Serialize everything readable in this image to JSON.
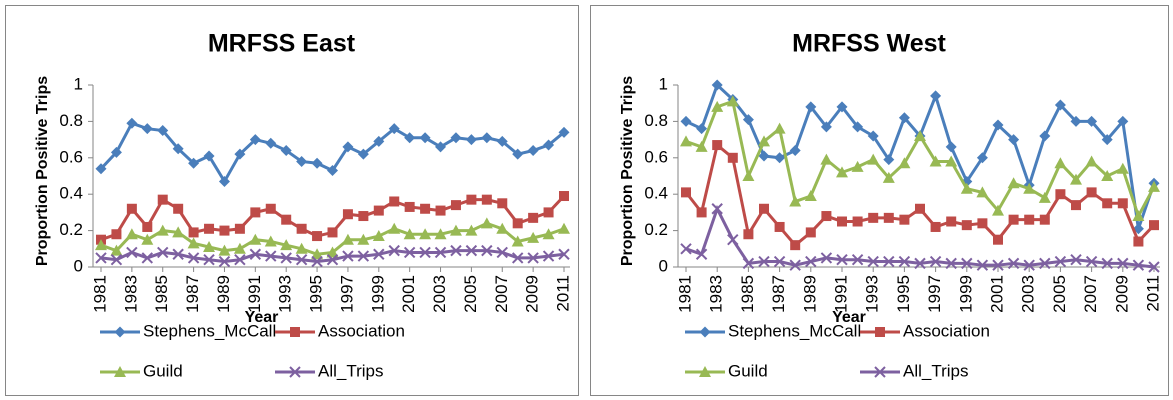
{
  "chart_data": [
    {
      "type": "line",
      "title": "MRFSS East",
      "x_label": "Year",
      "y_label": "Proportion Positive Trips",
      "x": [
        1981,
        1982,
        1983,
        1984,
        1985,
        1986,
        1987,
        1988,
        1989,
        1990,
        1991,
        1992,
        1993,
        1994,
        1995,
        1996,
        1997,
        1998,
        1999,
        2000,
        2001,
        2002,
        2003,
        2004,
        2005,
        2006,
        2007,
        2008,
        2009,
        2010,
        2011
      ],
      "xlim": [
        1981,
        2011
      ],
      "xticks": [
        1981,
        1983,
        1985,
        1987,
        1989,
        1991,
        1993,
        1995,
        1997,
        1999,
        2001,
        2003,
        2005,
        2007,
        2009,
        2011
      ],
      "ylim": [
        0,
        1
      ],
      "yticks": [
        0,
        0.2,
        0.4,
        0.6,
        0.8,
        1
      ],
      "series": [
        {
          "name": "Stephens_McCall",
          "color": "#4a7ebb",
          "values": [
            0.54,
            0.63,
            0.79,
            0.76,
            0.75,
            0.65,
            0.57,
            0.61,
            0.47,
            0.62,
            0.7,
            0.68,
            0.64,
            0.58,
            0.57,
            0.53,
            0.66,
            0.62,
            0.69,
            0.76,
            0.71,
            0.71,
            0.66,
            0.71,
            0.7,
            0.71,
            0.69,
            0.62,
            0.64,
            0.67,
            0.74
          ]
        },
        {
          "name": "Association",
          "color": "#be4b48",
          "values": [
            0.15,
            0.18,
            0.32,
            0.22,
            0.37,
            0.32,
            0.19,
            0.21,
            0.2,
            0.21,
            0.3,
            0.32,
            0.26,
            0.21,
            0.17,
            0.19,
            0.29,
            0.28,
            0.31,
            0.36,
            0.33,
            0.32,
            0.31,
            0.34,
            0.37,
            0.37,
            0.35,
            0.24,
            0.27,
            0.3,
            0.39
          ]
        },
        {
          "name": "Guild",
          "color": "#98b954",
          "values": [
            0.12,
            0.09,
            0.18,
            0.15,
            0.2,
            0.19,
            0.13,
            0.11,
            0.09,
            0.1,
            0.15,
            0.14,
            0.12,
            0.1,
            0.07,
            0.08,
            0.15,
            0.15,
            0.17,
            0.21,
            0.18,
            0.18,
            0.18,
            0.2,
            0.2,
            0.24,
            0.21,
            0.14,
            0.16,
            0.18,
            0.21
          ]
        },
        {
          "name": "All_Trips",
          "color": "#7d60a0",
          "values": [
            0.05,
            0.04,
            0.08,
            0.05,
            0.08,
            0.07,
            0.05,
            0.04,
            0.03,
            0.04,
            0.07,
            0.06,
            0.05,
            0.04,
            0.03,
            0.04,
            0.06,
            0.06,
            0.07,
            0.09,
            0.08,
            0.08,
            0.08,
            0.09,
            0.09,
            0.09,
            0.08,
            0.05,
            0.05,
            0.06,
            0.07
          ]
        }
      ]
    },
    {
      "type": "line",
      "title": "MRFSS West",
      "x_label": "Year",
      "y_label": "Proportion Positive Trips",
      "x": [
        1981,
        1982,
        1983,
        1984,
        1985,
        1986,
        1987,
        1988,
        1989,
        1990,
        1991,
        1992,
        1993,
        1994,
        1995,
        1996,
        1997,
        1998,
        1999,
        2000,
        2001,
        2002,
        2003,
        2004,
        2005,
        2006,
        2007,
        2008,
        2009,
        2010,
        2011
      ],
      "xlim": [
        1981,
        2011
      ],
      "xticks": [
        1981,
        1983,
        1985,
        1987,
        1989,
        1991,
        1993,
        1995,
        1997,
        1999,
        2001,
        2003,
        2005,
        2007,
        2009,
        2011
      ],
      "ylim": [
        0,
        1
      ],
      "yticks": [
        0,
        0.2,
        0.4,
        0.6,
        0.8,
        1
      ],
      "series": [
        {
          "name": "Stephens_McCall",
          "color": "#4a7ebb",
          "values": [
            0.8,
            0.76,
            1.0,
            0.92,
            0.81,
            0.61,
            0.6,
            0.64,
            0.88,
            0.77,
            0.88,
            0.77,
            0.72,
            0.59,
            0.82,
            0.72,
            0.94,
            0.66,
            0.47,
            0.6,
            0.78,
            0.7,
            0.45,
            0.72,
            0.89,
            0.8,
            0.8,
            0.7,
            0.8,
            0.21,
            0.46
          ]
        },
        {
          "name": "Association",
          "color": "#be4b48",
          "values": [
            0.41,
            0.3,
            0.67,
            0.6,
            0.18,
            0.32,
            0.22,
            0.12,
            0.19,
            0.28,
            0.25,
            0.25,
            0.27,
            0.27,
            0.26,
            0.32,
            0.22,
            0.25,
            0.23,
            0.24,
            0.15,
            0.26,
            0.26,
            0.26,
            0.4,
            0.34,
            0.41,
            0.35,
            0.35,
            0.14,
            0.23
          ]
        },
        {
          "name": "Guild",
          "color": "#98b954",
          "values": [
            0.69,
            0.66,
            0.88,
            0.91,
            0.5,
            0.69,
            0.76,
            0.36,
            0.39,
            0.59,
            0.52,
            0.55,
            0.59,
            0.49,
            0.57,
            0.72,
            0.58,
            0.58,
            0.43,
            0.41,
            0.31,
            0.46,
            0.43,
            0.38,
            0.57,
            0.48,
            0.58,
            0.5,
            0.54,
            0.28,
            0.44
          ]
        },
        {
          "name": "All_Trips",
          "color": "#7d60a0",
          "values": [
            0.1,
            0.07,
            0.32,
            0.15,
            0.02,
            0.03,
            0.03,
            0.01,
            0.03,
            0.05,
            0.04,
            0.04,
            0.03,
            0.03,
            0.03,
            0.02,
            0.03,
            0.02,
            0.02,
            0.01,
            0.01,
            0.02,
            0.01,
            0.02,
            0.03,
            0.04,
            0.03,
            0.02,
            0.02,
            0.01,
            0.0
          ]
        }
      ]
    }
  ]
}
